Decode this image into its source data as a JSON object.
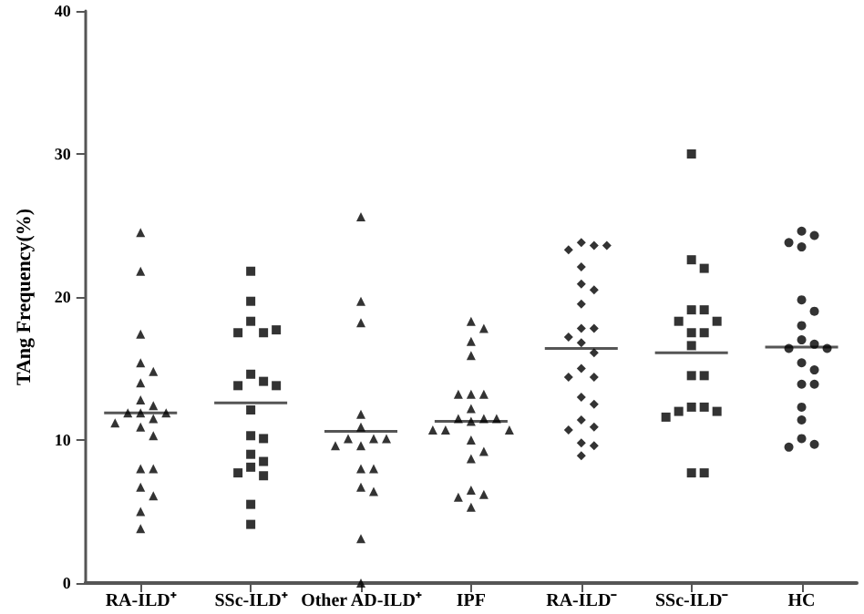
{
  "chart_data": {
    "type": "scatter",
    "ylabel": "TAng Frequency(%)",
    "categories": [
      "RA-ILD⁺",
      "SSc-ILD⁺",
      "Other AD-ILD⁺",
      "IPF",
      "RA-ILD⁻",
      "SSc-ILD⁻",
      "HC"
    ],
    "ylim": [
      0,
      40
    ],
    "yticks": [
      0,
      10,
      20,
      30,
      40
    ],
    "grid": false,
    "series": [
      {
        "marker": "triangle",
        "color": "#000000",
        "x": [
          "RA-ILD⁺",
          "RA-ILD⁺",
          "RA-ILD⁺",
          "RA-ILD⁺",
          "RA-ILD⁺",
          "RA-ILD⁺",
          "RA-ILD⁺",
          "RA-ILD⁺",
          "RA-ILD⁺",
          "RA-ILD⁺",
          "RA-ILD⁺",
          "RA-ILD⁺",
          "RA-ILD⁺",
          "RA-ILD⁺",
          "RA-ILD⁺",
          "RA-ILD⁺",
          "RA-ILD⁺",
          "RA-ILD⁺",
          "RA-ILD⁺",
          "RA-ILD⁺",
          "RA-ILD⁺"
        ],
        "values": [
          24.5,
          21.8,
          17.4,
          15.4,
          14.8,
          14.0,
          12.8,
          12.4,
          11.9,
          11.9,
          11.9,
          11.5,
          11.2,
          10.9,
          10.3,
          8.0,
          8.0,
          6.7,
          6.1,
          5.0,
          3.8
        ]
      },
      {
        "marker": "square",
        "color": "#000000",
        "x": [
          "SSc-ILD⁺",
          "SSc-ILD⁺",
          "SSc-ILD⁺",
          "SSc-ILD⁺",
          "SSc-ILD⁺",
          "SSc-ILD⁺",
          "SSc-ILD⁺",
          "SSc-ILD⁺",
          "SSc-ILD⁺",
          "SSc-ILD⁺",
          "SSc-ILD⁺",
          "SSc-ILD⁺",
          "SSc-ILD⁺",
          "SSc-ILD⁺",
          "SSc-ILD⁺",
          "SSc-ILD⁺",
          "SSc-ILD⁺",
          "SSc-ILD⁺",
          "SSc-ILD⁺",
          "SSc-ILD⁺"
        ],
        "values": [
          21.8,
          19.7,
          18.3,
          17.5,
          17.5,
          17.7,
          14.6,
          14.1,
          13.8,
          13.8,
          12.1,
          10.3,
          10.1,
          9.0,
          8.5,
          8.1,
          7.7,
          7.5,
          5.5,
          4.1
        ]
      },
      {
        "marker": "triangle",
        "color": "#000000",
        "x": [
          "Other AD-ILD⁺",
          "Other AD-ILD⁺",
          "Other AD-ILD⁺",
          "Other AD-ILD⁺",
          "Other AD-ILD⁺",
          "Other AD-ILD⁺",
          "Other AD-ILD⁺",
          "Other AD-ILD⁺",
          "Other AD-ILD⁺",
          "Other AD-ILD⁺",
          "Other AD-ILD⁺",
          "Other AD-ILD⁺",
          "Other AD-ILD⁺",
          "Other AD-ILD⁺",
          "Other AD-ILD⁺",
          "Other AD-ILD⁺"
        ],
        "values": [
          25.6,
          19.7,
          18.2,
          11.8,
          10.9,
          10.1,
          10.1,
          10.1,
          9.6,
          9.6,
          8.0,
          8.0,
          6.7,
          6.4,
          3.1,
          0.0
        ]
      },
      {
        "marker": "triangle",
        "color": "#000000",
        "x": [
          "IPF",
          "IPF",
          "IPF",
          "IPF",
          "IPF",
          "IPF",
          "IPF",
          "IPF",
          "IPF",
          "IPF",
          "IPF",
          "IPF",
          "IPF",
          "IPF",
          "IPF",
          "IPF",
          "IPF",
          "IPF",
          "IPF",
          "IPF",
          "IPF",
          "IPF"
        ],
        "values": [
          18.3,
          17.8,
          16.9,
          15.9,
          13.2,
          13.2,
          13.2,
          12.2,
          11.5,
          11.5,
          11.5,
          11.3,
          10.7,
          10.7,
          10.7,
          10.0,
          9.2,
          8.7,
          6.5,
          6.2,
          6.0,
          5.3
        ]
      },
      {
        "marker": "diamond",
        "color": "#000000",
        "x": [
          "RA-ILD⁻",
          "RA-ILD⁻",
          "RA-ILD⁻",
          "RA-ILD⁻",
          "RA-ILD⁻",
          "RA-ILD⁻",
          "RA-ILD⁻",
          "RA-ILD⁻",
          "RA-ILD⁻",
          "RA-ILD⁻",
          "RA-ILD⁻",
          "RA-ILD⁻",
          "RA-ILD⁻",
          "RA-ILD⁻",
          "RA-ILD⁻",
          "RA-ILD⁻",
          "RA-ILD⁻",
          "RA-ILD⁻",
          "RA-ILD⁻",
          "RA-ILD⁻",
          "RA-ILD⁻",
          "RA-ILD⁻",
          "RA-ILD⁻",
          "RA-ILD⁻"
        ],
        "values": [
          23.8,
          23.6,
          23.3,
          23.6,
          22.1,
          20.9,
          20.5,
          19.5,
          17.8,
          17.8,
          17.2,
          16.8,
          16.1,
          15.0,
          14.4,
          14.4,
          13.0,
          12.5,
          11.4,
          10.9,
          10.7,
          9.8,
          9.6,
          8.9
        ]
      },
      {
        "marker": "square",
        "color": "#000000",
        "x": [
          "SSc-ILD⁻",
          "SSc-ILD⁻",
          "SSc-ILD⁻",
          "SSc-ILD⁻",
          "SSc-ILD⁻",
          "SSc-ILD⁻",
          "SSc-ILD⁻",
          "SSc-ILD⁻",
          "SSc-ILD⁻",
          "SSc-ILD⁻",
          "SSc-ILD⁻",
          "SSc-ILD⁻",
          "SSc-ILD⁻",
          "SSc-ILD⁻",
          "SSc-ILD⁻",
          "SSc-ILD⁻",
          "SSc-ILD⁻",
          "SSc-ILD⁻",
          "SSc-ILD⁻"
        ],
        "values": [
          30.0,
          22.6,
          22.0,
          19.1,
          19.1,
          18.3,
          18.3,
          17.5,
          17.5,
          16.6,
          14.5,
          14.5,
          12.3,
          12.3,
          12.0,
          12.0,
          11.6,
          7.7,
          7.7
        ]
      },
      {
        "marker": "circle",
        "color": "#000000",
        "x": [
          "HC",
          "HC",
          "HC",
          "HC",
          "HC",
          "HC",
          "HC",
          "HC",
          "HC",
          "HC",
          "HC",
          "HC",
          "HC",
          "HC",
          "HC",
          "HC",
          "HC",
          "HC",
          "HC",
          "HC"
        ],
        "values": [
          24.6,
          24.3,
          23.8,
          23.5,
          19.8,
          19.0,
          18.0,
          17.0,
          16.7,
          16.4,
          16.4,
          15.4,
          14.9,
          13.9,
          13.9,
          12.3,
          11.4,
          10.1,
          9.7,
          9.5
        ]
      },
      {
        "type": "box",
        "color": "#555555",
        "boxes": [
          {
            "low": 11.9,
            "q1": 11.9,
            "median": 11.9,
            "q3": 11.9,
            "high": 11.9
          },
          {
            "low": 12.6,
            "q1": 12.6,
            "median": 12.6,
            "q3": 12.6,
            "high": 12.6
          },
          {
            "low": 10.6,
            "q1": 10.6,
            "median": 10.6,
            "q3": 10.6,
            "high": 10.6
          },
          {
            "low": 11.3,
            "q1": 11.3,
            "median": 11.3,
            "q3": 11.3,
            "high": 11.3
          },
          {
            "low": 16.4,
            "q1": 16.4,
            "median": 16.4,
            "q3": 16.4,
            "high": 16.4
          },
          {
            "low": 16.1,
            "q1": 16.1,
            "median": 16.1,
            "q3": 16.1,
            "high": 16.1
          },
          {
            "low": 16.5,
            "q1": 16.5,
            "median": 16.5,
            "q3": 16.5,
            "high": 16.5
          }
        ]
      }
    ]
  }
}
